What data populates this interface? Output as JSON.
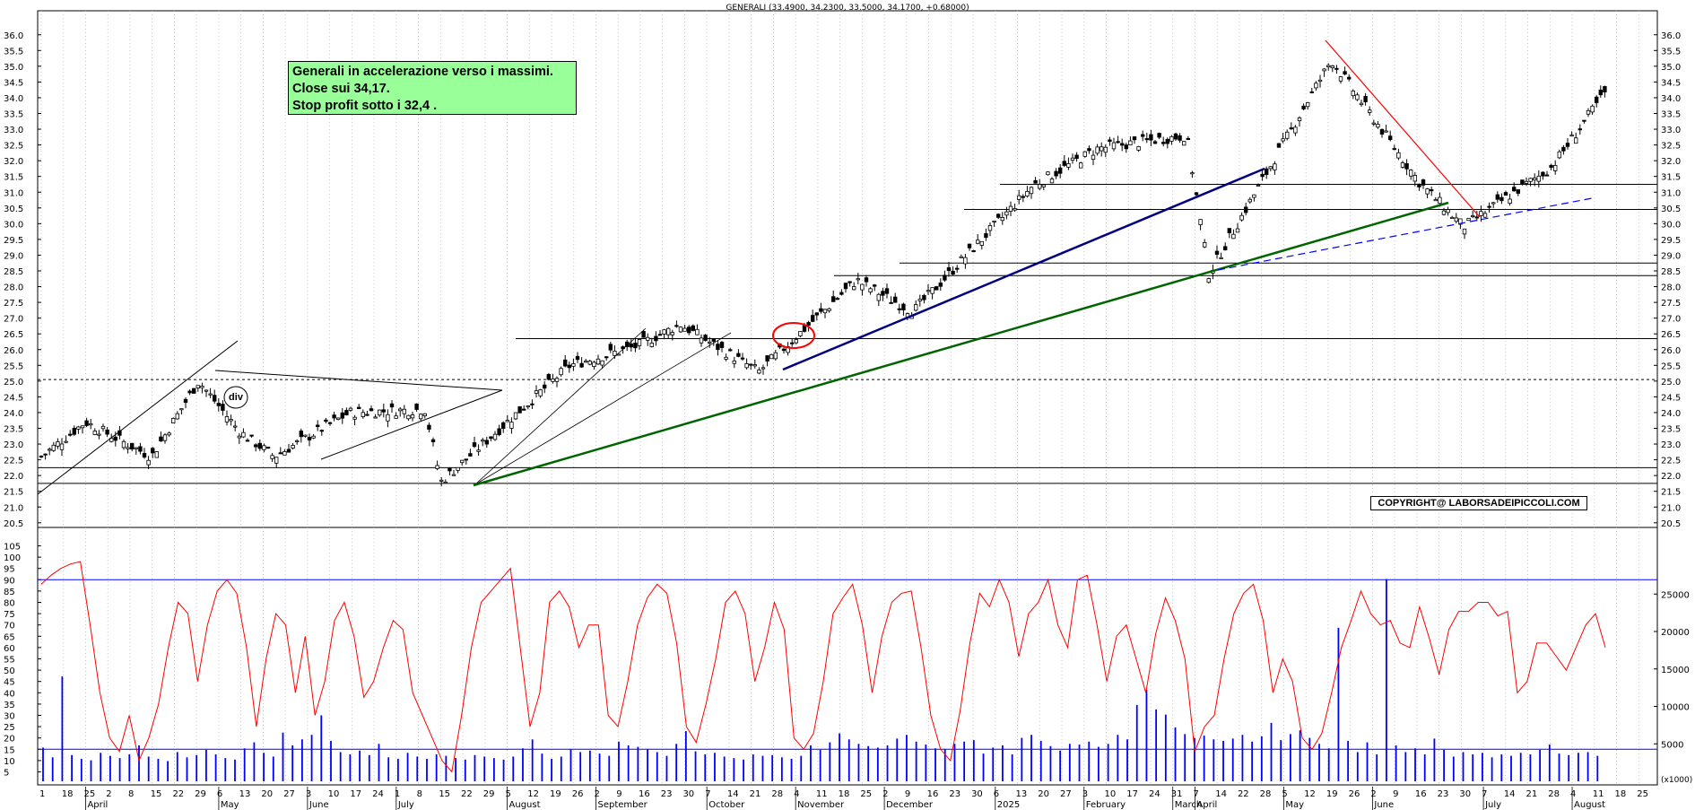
{
  "title": "GENERALI (33.4900, 34.2300, 33.5000, 34.1700, +0.68000)",
  "note": {
    "line1": "Generali in accelerazione verso i massimi.",
    "line2": "Close sui 34,17.",
    "line3": "Stop profit sotto i 32,4 ."
  },
  "copyright": "COPYRIGHT@ LABORSADEIPICCOLI.COM",
  "div_label": "div",
  "volume_unit": "(x1000)",
  "colors": {
    "candle": "#000000",
    "oscillator": "#ff0000",
    "volume": "#0000ff",
    "trend_main": "#006400",
    "trend_blue": "#000080",
    "trend_red": "#ff0000",
    "note_bg": "#99ff99"
  },
  "chart_data": [
    {
      "type": "candlestick",
      "title": "GENERALI (33.4900, 34.2300, 33.5000, 34.1700, +0.68000)",
      "ylim": [
        20.0,
        36.5
      ],
      "y_ticks": [
        "36.0",
        "35.5",
        "35.0",
        "34.5",
        "34.0",
        "33.5",
        "33.0",
        "32.5",
        "32.0",
        "31.5",
        "31.0",
        "30.5",
        "30.0",
        "29.5",
        "29.0",
        "28.5",
        "28.0",
        "27.5",
        "27.0",
        "26.5",
        "26.0",
        "25.5",
        "25.0",
        "24.5",
        "24.0",
        "23.5",
        "23.0",
        "22.5",
        "22.0",
        "21.5",
        "21.0",
        "20.5"
      ],
      "last": {
        "open": 33.49,
        "high": 34.23,
        "low": 33.5,
        "close": 34.17,
        "change": 0.68
      },
      "horizontal_levels": [
        22.25,
        21.75,
        25.05,
        26.35,
        28.35,
        28.75,
        30.45,
        31.25
      ],
      "key_closes": [
        {
          "date": "2024-04-01",
          "close": 22.6
        },
        {
          "date": "2024-04-15",
          "close": 23.7
        },
        {
          "date": "2024-05-06",
          "close": 22.6
        },
        {
          "date": "2024-05-21",
          "close": 25.0
        },
        {
          "date": "2024-06-03",
          "close": 23.4
        },
        {
          "date": "2024-06-14",
          "close": 22.6
        },
        {
          "date": "2024-07-08",
          "close": 24.0
        },
        {
          "date": "2024-08-01",
          "close": 24.1
        },
        {
          "date": "2024-08-06",
          "close": 21.8
        },
        {
          "date": "2024-09-16",
          "close": 25.5
        },
        {
          "date": "2024-10-07",
          "close": 26.1
        },
        {
          "date": "2024-10-21",
          "close": 26.8
        },
        {
          "date": "2024-11-15",
          "close": 25.3
        },
        {
          "date": "2024-12-16",
          "close": 28.2
        },
        {
          "date": "2025-01-03",
          "close": 27.2
        },
        {
          "date": "2025-02-10",
          "close": 31.2
        },
        {
          "date": "2025-03-03",
          "close": 32.4
        },
        {
          "date": "2025-03-31",
          "close": 32.8
        },
        {
          "date": "2025-04-07",
          "close": 28.4
        },
        {
          "date": "2025-05-09",
          "close": 34.0
        },
        {
          "date": "2025-05-16",
          "close": 35.2
        },
        {
          "date": "2025-06-13",
          "close": 31.3
        },
        {
          "date": "2025-06-27",
          "close": 29.9
        },
        {
          "date": "2025-07-25",
          "close": 31.8
        },
        {
          "date": "2025-08-11",
          "close": 34.17
        }
      ]
    },
    {
      "type": "line",
      "name": "oscillator",
      "ylim": [
        0,
        105
      ],
      "y_ticks": [
        "105",
        "100",
        "95",
        "90",
        "85",
        "80",
        "75",
        "70",
        "65",
        "60",
        "55",
        "50",
        "45",
        "40",
        "35",
        "30",
        "25",
        "20",
        "15",
        "10",
        "5"
      ],
      "levels": [
        90,
        15
      ],
      "values": [
        88,
        92,
        95,
        97,
        98,
        70,
        40,
        20,
        14,
        30,
        10,
        20,
        35,
        60,
        80,
        75,
        45,
        70,
        85,
        90,
        84,
        60,
        25,
        55,
        75,
        70,
        40,
        65,
        30,
        45,
        72,
        80,
        65,
        38,
        45,
        60,
        72,
        68,
        40,
        30,
        20,
        10,
        5,
        30,
        60,
        80,
        85,
        90,
        95,
        60,
        25,
        40,
        80,
        85,
        78,
        60,
        70,
        70,
        30,
        25,
        45,
        70,
        82,
        88,
        84,
        62,
        25,
        18,
        35,
        55,
        80,
        85,
        75,
        45,
        60,
        80,
        68,
        20,
        15,
        22,
        45,
        75,
        82,
        88,
        70,
        40,
        65,
        80,
        84,
        85,
        60,
        30,
        15,
        10,
        32,
        62,
        84,
        78,
        90,
        80,
        56,
        75,
        80,
        90,
        70,
        60,
        90,
        92,
        70,
        45,
        65,
        70,
        55,
        40,
        66,
        82,
        72,
        55,
        14,
        25,
        30,
        55,
        75,
        84,
        88,
        72,
        40,
        55,
        45,
        20,
        15,
        22,
        40,
        60,
        72,
        85,
        75,
        70,
        72,
        62,
        60,
        78,
        64,
        48,
        68,
        76,
        76,
        80,
        80,
        74,
        76,
        40,
        45,
        62,
        62,
        56,
        50,
        60,
        70,
        75,
        60
      ]
    },
    {
      "type": "bar",
      "name": "volume",
      "unit": "(x1000)",
      "ylim": [
        0,
        30000
      ],
      "y_ticks": [
        "25000",
        "20000",
        "15000",
        "10000",
        "5000"
      ],
      "values": [
        4500,
        3200,
        14000,
        3500,
        3000,
        2800,
        3800,
        3400,
        3100,
        3600,
        4800,
        3300,
        3000,
        2700,
        3900,
        3200,
        3500,
        4200,
        3600,
        3100,
        2900,
        4400,
        5200,
        3800,
        3300,
        6500,
        4800,
        5600,
        6200,
        8800,
        5400,
        3900,
        3600,
        4100,
        3500,
        5000,
        3200,
        3000,
        3800,
        3300,
        3000,
        3600,
        3400,
        3100,
        2900,
        3500,
        3300,
        3100,
        2900,
        3300,
        4400,
        5600,
        3700,
        3000,
        3300,
        4300,
        3900,
        4100,
        3700,
        3400,
        5300,
        4800,
        4600,
        4300,
        3900,
        3400,
        5000,
        6700,
        4000,
        3600,
        3800,
        3300,
        3100,
        2900,
        3600,
        3400,
        3500,
        3200,
        3000,
        3400,
        4800,
        4200,
        5200,
        6400,
        5600,
        5000,
        4700,
        4500,
        4800,
        5700,
        6200,
        5300,
        4900,
        4400,
        4300,
        5000,
        5300,
        5500,
        3700,
        4500,
        4800,
        3600,
        5800,
        6200,
        5400,
        4700,
        4100,
        5000,
        4900,
        5300,
        4600,
        5000,
        6200,
        5600,
        10200,
        12200,
        9600,
        8900,
        7200,
        6300,
        5800,
        6100,
        5600,
        5400,
        5700,
        6200,
        5300,
        6000,
        7800,
        5500,
        6300,
        6800,
        5800,
        5000,
        4400,
        20500,
        5400,
        3900,
        5200,
        3600,
        27000,
        4800,
        3900,
        4400,
        3600,
        5700,
        4200,
        3300,
        3900,
        3600,
        3800,
        3200,
        3600,
        3400,
        3800,
        3600,
        4200,
        4900,
        3700,
        3500,
        3800,
        3900,
        3400
      ]
    }
  ],
  "x_axis": {
    "day_ticks": [
      "1",
      "18",
      "25",
      "2",
      "8",
      "15",
      "22",
      "29",
      "6",
      "13",
      "20",
      "27",
      "3",
      "10",
      "17",
      "24",
      "1",
      "8",
      "15",
      "22",
      "29",
      "5",
      "12",
      "19",
      "26",
      "2",
      "9",
      "16",
      "23",
      "30",
      "7",
      "14",
      "21",
      "28",
      "4",
      "11",
      "18",
      "25",
      "2",
      "9",
      "16",
      "23",
      "30",
      "6",
      "13",
      "20",
      "27",
      "3",
      "10",
      "17",
      "24",
      "31",
      "7",
      "14",
      "22",
      "28",
      "5",
      "12",
      "19",
      "26",
      "2",
      "9",
      "16",
      "23",
      "30",
      "7",
      "14",
      "21",
      "28",
      "4",
      "11",
      "18",
      "25"
    ],
    "months": [
      "April",
      "May",
      "June",
      "July",
      "August",
      "September",
      "October",
      "November",
      "December",
      "2025",
      "February",
      "March",
      "April",
      "May",
      "June",
      "July",
      "August"
    ]
  }
}
